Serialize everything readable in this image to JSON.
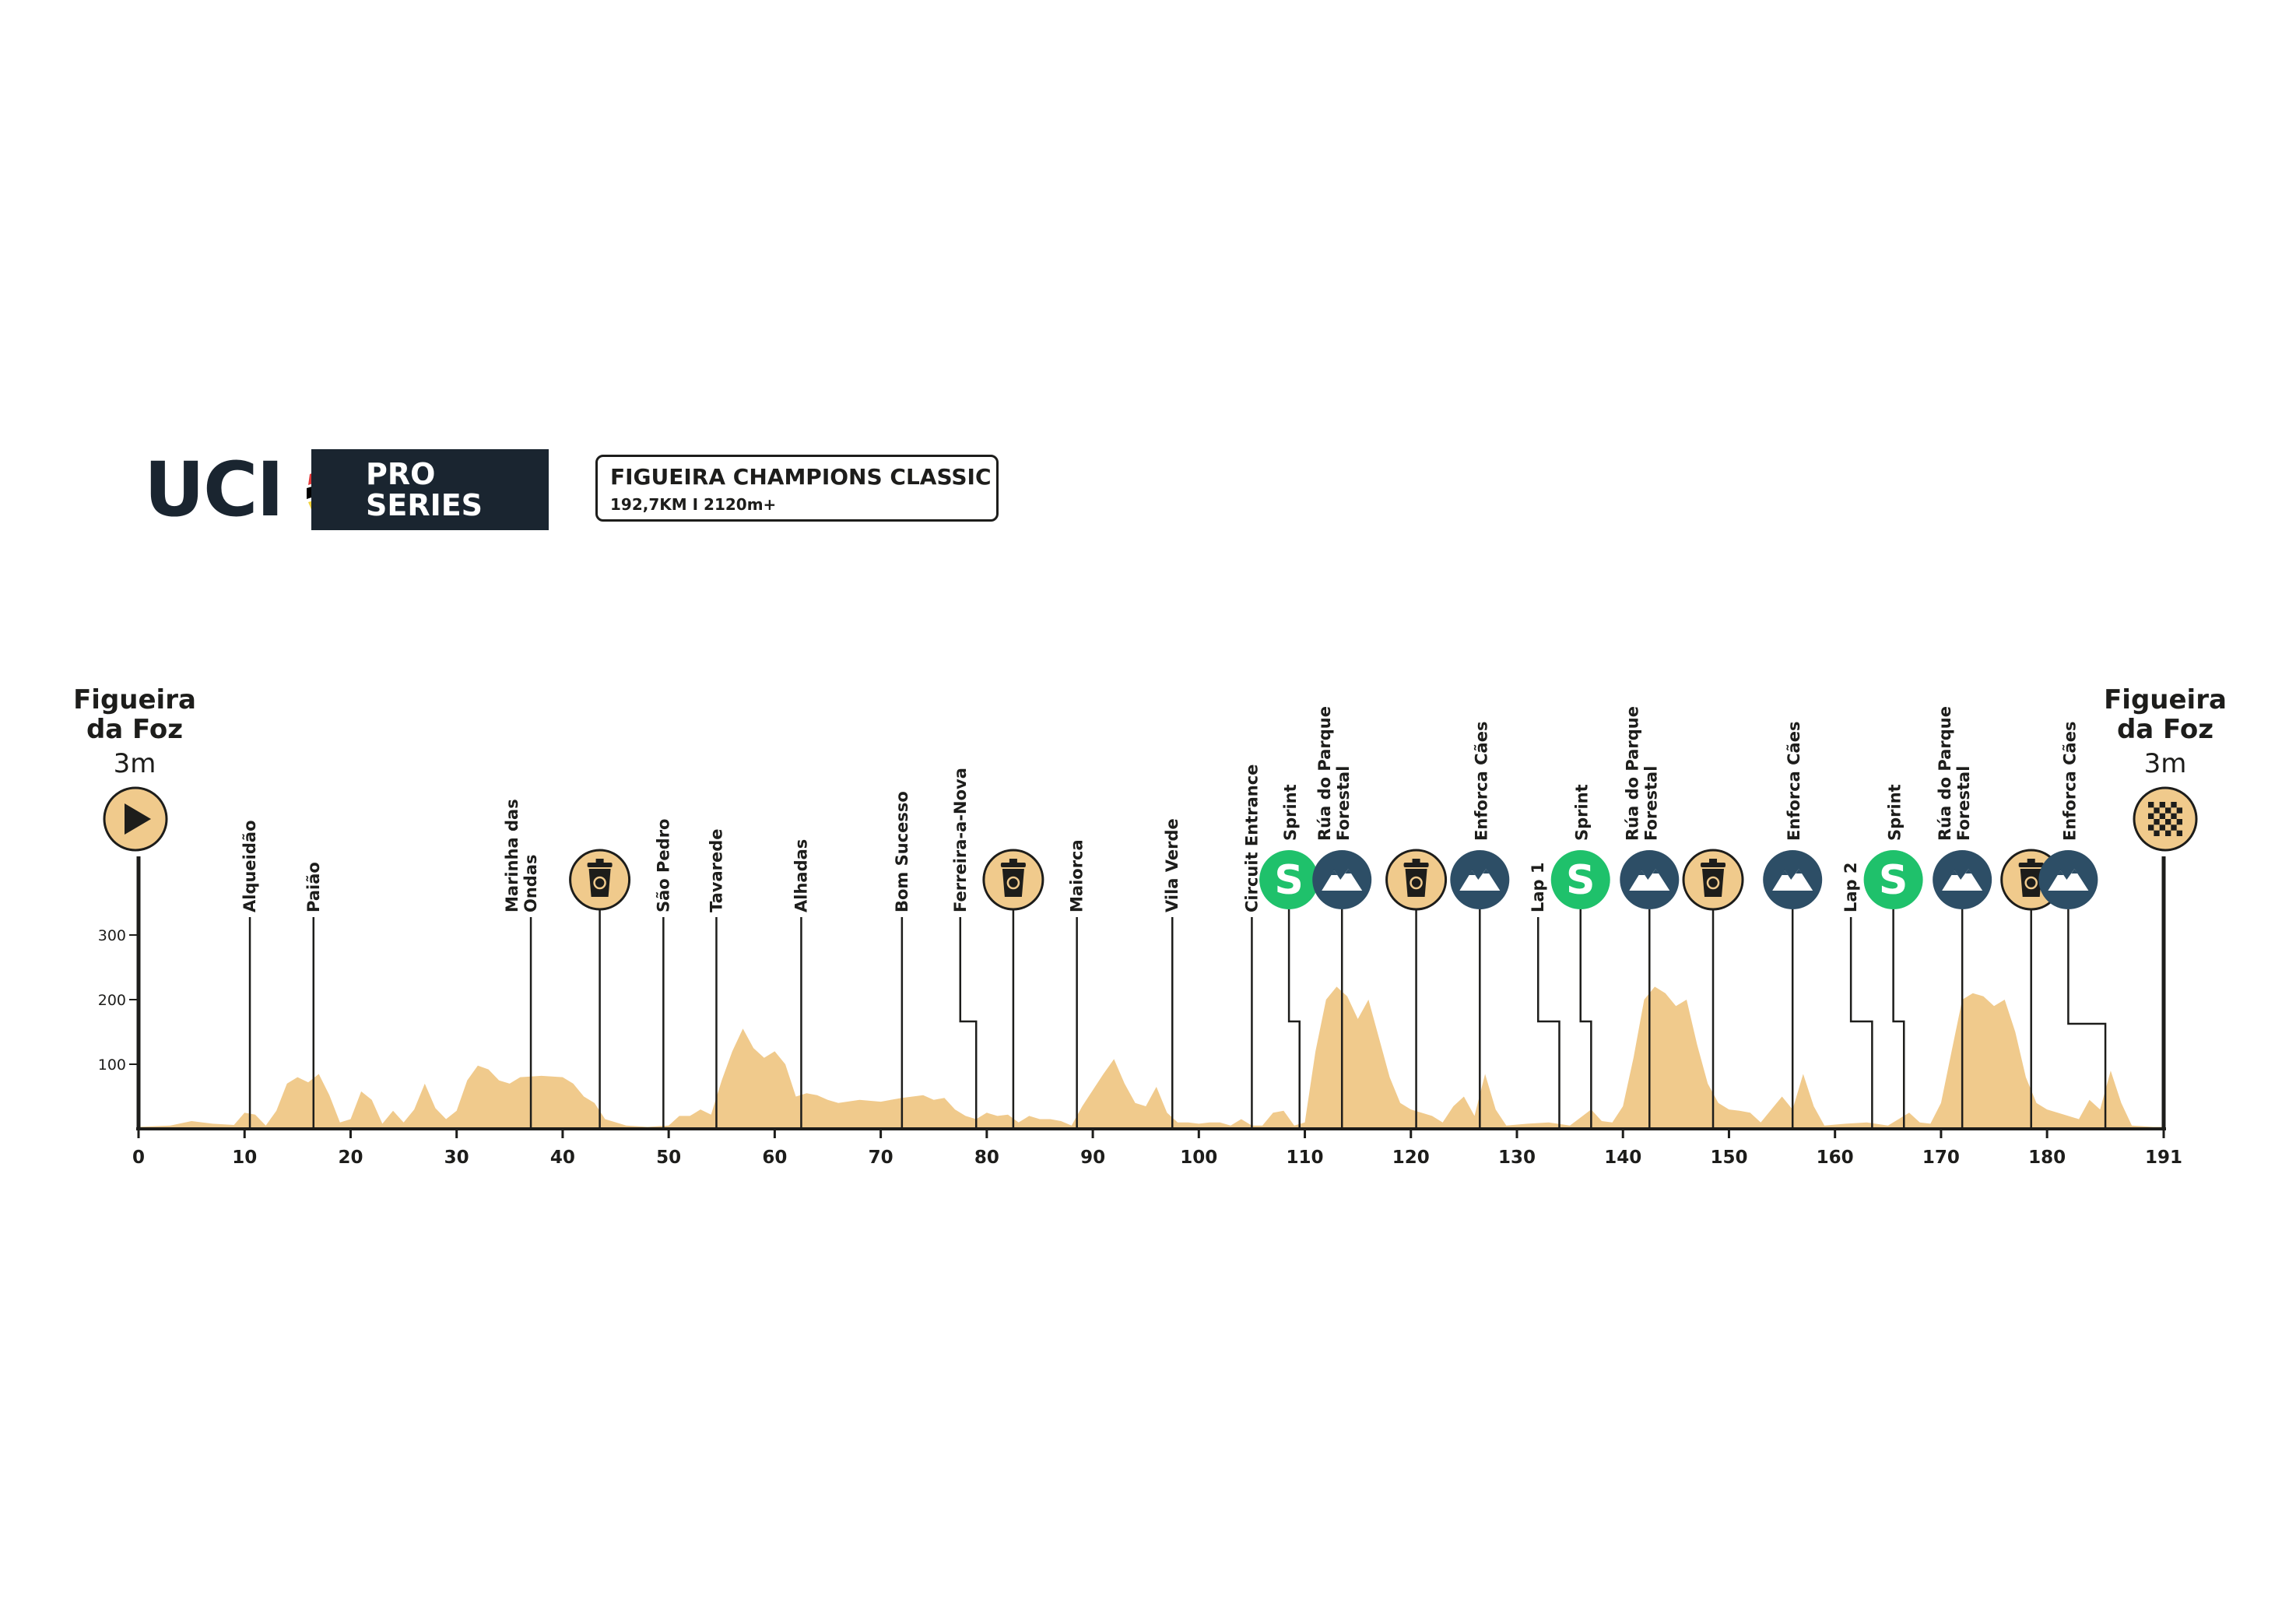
{
  "brand": {
    "uci_text": "UCI",
    "series_line1": "PRO",
    "series_line2": "SERIES",
    "colors": {
      "dark": "#1a2530",
      "blue": "#4aa3df",
      "red": "#e23b3b",
      "black": "#000000",
      "yellow": "#f3d23a",
      "green": "#55b04e"
    }
  },
  "race": {
    "title": "FIGUEIRA CHAMPIONS CLASSIC",
    "subtitle": "192,7KM I 2120m+"
  },
  "start": {
    "name_line1": "Figueira",
    "name_line2": "da Foz",
    "altitude": "3m",
    "icon": "play-icon"
  },
  "finish": {
    "name_line1": "Figueira",
    "name_line2": "da Foz",
    "altitude": "3m",
    "icon": "checkered-flag-icon"
  },
  "colors": {
    "profile_fill": "#f0ca8c",
    "sprint": "#1fc16b",
    "kom": "#2d4e66",
    "feed": "#f0ca8c",
    "axis": "#1d1d1b"
  },
  "chart_data": {
    "type": "area",
    "xlim": [
      0,
      191
    ],
    "ylim": [
      0,
      400
    ],
    "x_ticks": [
      0,
      10,
      20,
      30,
      40,
      50,
      60,
      70,
      80,
      90,
      100,
      110,
      120,
      130,
      140,
      150,
      160,
      170,
      180,
      191
    ],
    "y_ticks": [
      100,
      200,
      300
    ],
    "profile": [
      [
        0,
        3
      ],
      [
        3,
        5
      ],
      [
        5,
        12
      ],
      [
        7,
        8
      ],
      [
        9,
        6
      ],
      [
        10,
        25
      ],
      [
        11,
        22
      ],
      [
        12,
        5
      ],
      [
        13,
        28
      ],
      [
        14,
        70
      ],
      [
        15,
        80
      ],
      [
        16,
        72
      ],
      [
        17,
        85
      ],
      [
        18,
        52
      ],
      [
        19,
        10
      ],
      [
        20,
        15
      ],
      [
        21,
        58
      ],
      [
        22,
        45
      ],
      [
        23,
        8
      ],
      [
        24,
        28
      ],
      [
        25,
        10
      ],
      [
        26,
        30
      ],
      [
        27,
        70
      ],
      [
        28,
        32
      ],
      [
        29,
        15
      ],
      [
        30,
        28
      ],
      [
        31,
        75
      ],
      [
        32,
        98
      ],
      [
        33,
        92
      ],
      [
        34,
        75
      ],
      [
        35,
        70
      ],
      [
        36,
        80
      ],
      [
        38,
        82
      ],
      [
        40,
        80
      ],
      [
        41,
        70
      ],
      [
        42,
        50
      ],
      [
        43,
        40
      ],
      [
        44,
        15
      ],
      [
        46,
        5
      ],
      [
        48,
        3
      ],
      [
        50,
        5
      ],
      [
        51,
        20
      ],
      [
        52,
        20
      ],
      [
        53,
        30
      ],
      [
        54,
        22
      ],
      [
        55,
        75
      ],
      [
        56,
        120
      ],
      [
        57,
        155
      ],
      [
        58,
        125
      ],
      [
        59,
        110
      ],
      [
        60,
        120
      ],
      [
        61,
        100
      ],
      [
        62,
        50
      ],
      [
        63,
        55
      ],
      [
        64,
        52
      ],
      [
        65,
        45
      ],
      [
        66,
        40
      ],
      [
        68,
        45
      ],
      [
        70,
        42
      ],
      [
        72,
        48
      ],
      [
        74,
        52
      ],
      [
        75,
        45
      ],
      [
        76,
        48
      ],
      [
        77,
        30
      ],
      [
        78,
        20
      ],
      [
        79,
        15
      ],
      [
        80,
        25
      ],
      [
        81,
        20
      ],
      [
        82,
        22
      ],
      [
        83,
        10
      ],
      [
        84,
        20
      ],
      [
        85,
        15
      ],
      [
        86,
        15
      ],
      [
        87,
        12
      ],
      [
        88,
        5
      ],
      [
        89,
        35
      ],
      [
        90,
        60
      ],
      [
        91,
        85
      ],
      [
        92,
        108
      ],
      [
        93,
        70
      ],
      [
        94,
        40
      ],
      [
        95,
        35
      ],
      [
        96,
        65
      ],
      [
        97,
        25
      ],
      [
        98,
        10
      ],
      [
        99,
        10
      ],
      [
        100,
        8
      ],
      [
        101,
        10
      ],
      [
        102,
        10
      ],
      [
        103,
        5
      ],
      [
        104,
        15
      ],
      [
        105,
        5
      ],
      [
        106,
        5
      ],
      [
        107,
        25
      ],
      [
        108,
        28
      ],
      [
        109,
        5
      ],
      [
        110,
        10
      ],
      [
        111,
        120
      ],
      [
        112,
        200
      ],
      [
        113,
        220
      ],
      [
        114,
        205
      ],
      [
        115,
        170
      ],
      [
        116,
        200
      ],
      [
        117,
        140
      ],
      [
        118,
        80
      ],
      [
        119,
        40
      ],
      [
        120,
        30
      ],
      [
        121,
        25
      ],
      [
        122,
        20
      ],
      [
        123,
        10
      ],
      [
        124,
        35
      ],
      [
        125,
        50
      ],
      [
        126,
        20
      ],
      [
        127,
        85
      ],
      [
        128,
        30
      ],
      [
        129,
        5
      ],
      [
        131,
        8
      ],
      [
        133,
        10
      ],
      [
        135,
        5
      ],
      [
        137,
        30
      ],
      [
        138,
        12
      ],
      [
        139,
        10
      ],
      [
        140,
        35
      ],
      [
        141,
        110
      ],
      [
        142,
        200
      ],
      [
        143,
        220
      ],
      [
        144,
        210
      ],
      [
        145,
        190
      ],
      [
        146,
        200
      ],
      [
        147,
        130
      ],
      [
        148,
        70
      ],
      [
        149,
        40
      ],
      [
        150,
        30
      ],
      [
        151,
        28
      ],
      [
        152,
        25
      ],
      [
        153,
        10
      ],
      [
        154,
        30
      ],
      [
        155,
        50
      ],
      [
        156,
        30
      ],
      [
        157,
        85
      ],
      [
        158,
        35
      ],
      [
        159,
        5
      ],
      [
        161,
        8
      ],
      [
        163,
        10
      ],
      [
        165,
        5
      ],
      [
        167,
        25
      ],
      [
        168,
        10
      ],
      [
        169,
        8
      ],
      [
        170,
        40
      ],
      [
        171,
        120
      ],
      [
        172,
        200
      ],
      [
        173,
        210
      ],
      [
        174,
        205
      ],
      [
        175,
        190
      ],
      [
        176,
        200
      ],
      [
        177,
        150
      ],
      [
        178,
        80
      ],
      [
        179,
        40
      ],
      [
        180,
        30
      ],
      [
        181,
        25
      ],
      [
        182,
        20
      ],
      [
        183,
        15
      ],
      [
        184,
        45
      ],
      [
        185,
        30
      ],
      [
        186,
        90
      ],
      [
        187,
        40
      ],
      [
        188,
        5
      ],
      [
        190,
        3
      ],
      [
        191,
        3
      ]
    ],
    "locations": [
      {
        "km": 10.5,
        "name": "Alqueidão"
      },
      {
        "km": 16.5,
        "name": "Paião"
      },
      {
        "km": 37,
        "name": "Marinha das Ondas",
        "lines": [
          "Marinha das",
          "Ondas"
        ]
      },
      {
        "km": 49.5,
        "name": "São Pedro"
      },
      {
        "km": 54.5,
        "name": "Tavarede"
      },
      {
        "km": 62.5,
        "name": "Alhadas"
      },
      {
        "km": 72,
        "name": "Bom Sucesso"
      },
      {
        "km": 77.5,
        "name": "Ferreira-a-Nova",
        "jog_to": 79.0
      },
      {
        "km": 88.5,
        "name": "Maiorca"
      },
      {
        "km": 97.5,
        "name": "Vila Verde"
      },
      {
        "km": 105,
        "name": "Circuit Entrance"
      },
      {
        "km": 108.5,
        "name": "Sprint",
        "jog_to": 109.5,
        "marker": "sprint"
      },
      {
        "km": 113.5,
        "name": "Rúa do Parque Forestal",
        "lines": [
          "Rúa do Parque",
          "Forestal"
        ],
        "marker": "kom"
      },
      {
        "km": 120.5,
        "name": "",
        "marker": "feed"
      },
      {
        "km": 126.5,
        "name": "Enforca Cães",
        "marker": "kom"
      },
      {
        "km": 132,
        "name": "Lap 1",
        "jog_to": 134.0
      },
      {
        "km": 136,
        "name": "Sprint",
        "jog_to": 137.0,
        "marker": "sprint"
      },
      {
        "km": 142.5,
        "name": "Rúa do Parque Forestal",
        "lines": [
          "Rúa do Parque",
          "Forestal"
        ],
        "marker": "kom"
      },
      {
        "km": 148.5,
        "name": "",
        "marker": "feed"
      },
      {
        "km": 156,
        "name": "Enforca Cães",
        "marker": "kom"
      },
      {
        "km": 161.5,
        "name": "Lap 2",
        "jog_to": 163.5
      },
      {
        "km": 165.5,
        "name": "Sprint",
        "jog_to": 166.5,
        "marker": "sprint"
      },
      {
        "km": 172,
        "name": "Rúa do Parque Forestal",
        "lines": [
          "Rúa do Parque",
          "Forestal"
        ],
        "marker": "kom"
      },
      {
        "km": 178.5,
        "name": "",
        "marker": "feed"
      },
      {
        "km": 182,
        "name": "Enforca Cães",
        "jog_to": 185.5,
        "marker": "kom"
      },
      {
        "km": 43.5,
        "name": "",
        "marker": "feed"
      },
      {
        "km": 82.5,
        "name": "",
        "marker": "feed"
      }
    ],
    "marker_symbols": {
      "sprint": "S"
    }
  }
}
